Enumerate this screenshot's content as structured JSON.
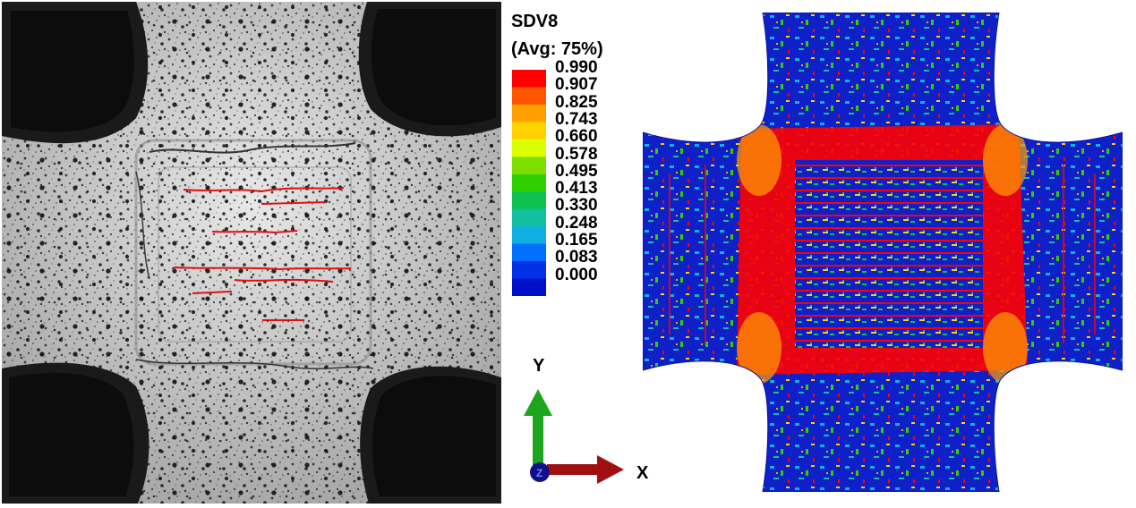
{
  "legend": {
    "title": "SDV8",
    "subtitle": "(Avg: 75%)",
    "values": [
      "0.990",
      "0.907",
      "0.825",
      "0.743",
      "0.660",
      "0.578",
      "0.495",
      "0.413",
      "0.330",
      "0.248",
      "0.165",
      "0.083",
      "0.000"
    ],
    "colors": [
      "#ff0000",
      "#ff5500",
      "#ffa000",
      "#ffd200",
      "#dcff00",
      "#7fe000",
      "#2fd000",
      "#10c050",
      "#10c0a0",
      "#10b0e0",
      "#0070ff",
      "#0030e8",
      "#0010c8"
    ]
  },
  "axes": {
    "y_label": "Y",
    "x_label": "X",
    "z_label": "Z",
    "y_color": "#1ea51e",
    "x_color": "#a01010",
    "z_color": "#101088"
  },
  "photo": {
    "crack_color": "#e01010",
    "background_color": "#bdbdbd"
  },
  "fea": {
    "base_color": "#1020c8",
    "damage_color": "#ff0000"
  }
}
